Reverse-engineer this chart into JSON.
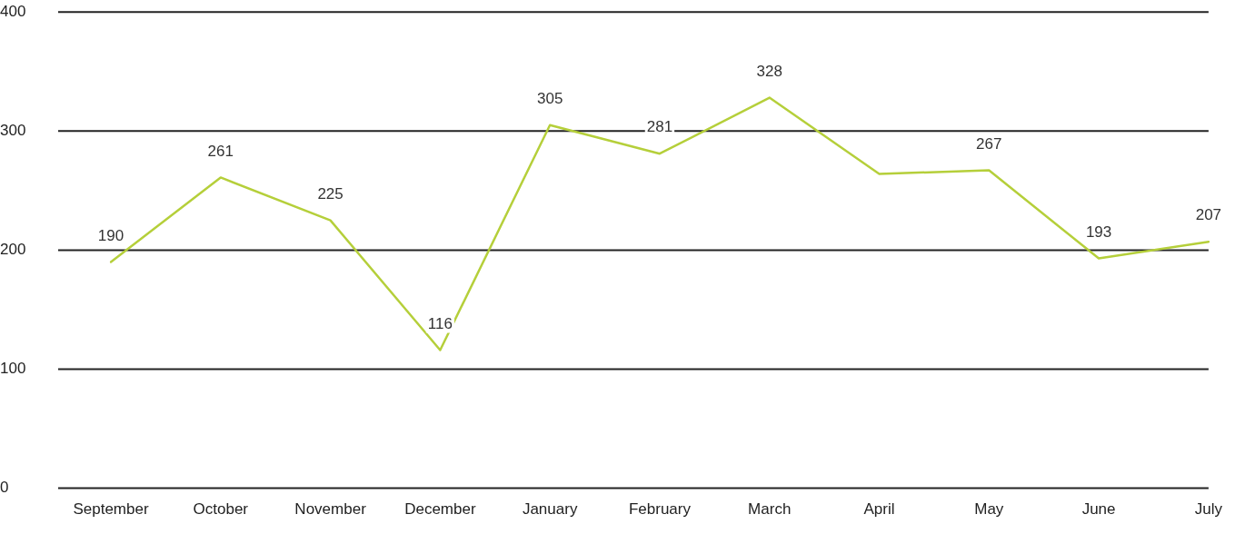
{
  "chart_data": {
    "type": "line",
    "categories": [
      "September",
      "October",
      "November",
      "December",
      "January",
      "February",
      "March",
      "April",
      "May",
      "June",
      "July"
    ],
    "series": [
      {
        "color": "#b5cf3a",
        "values": [
          190,
          261,
          225,
          116,
          305,
          281,
          328,
          264,
          267,
          193,
          207
        ],
        "value_labels": [
          "190",
          "261",
          "225",
          "116",
          "305",
          "281",
          "328",
          null,
          "267",
          "193",
          "207"
        ]
      }
    ],
    "ylim": [
      0,
      400
    ],
    "yticks": [
      0,
      100,
      200,
      300,
      400
    ],
    "grid": "y",
    "legend": false,
    "marker": "none"
  }
}
